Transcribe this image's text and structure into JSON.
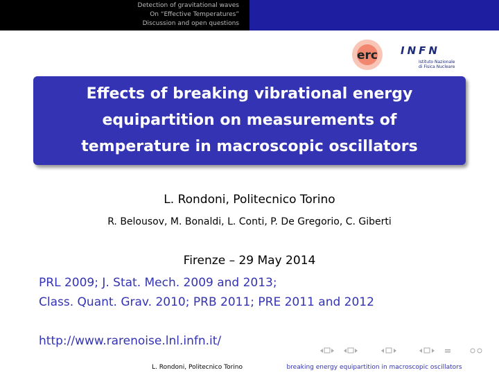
{
  "header": {
    "nav": [
      "Detection of gravitational waves",
      "On “Effective Temperatures”",
      "Discussion and open questions"
    ]
  },
  "logos": {
    "erc": "erc",
    "infn": "INFN",
    "infn_sub": [
      "Istituto Nazionale",
      "di Fisica Nucleare"
    ]
  },
  "title": [
    "Effects of breaking vibrational energy",
    "equipartition on measurements of",
    "temperature in macroscopic oscillators"
  ],
  "author": "L. Rondoni, Politecnico Torino",
  "coauthors": "R. Belousov, M. Bonaldi, L. Conti, P. De Gregorio, C. Giberti",
  "date": "Firenze – 29 May 2014",
  "references": [
    "PRL 2009; J. Stat. Mech. 2009 and 2013;",
    "Class. Quant. Grav. 2010; PRB 2011; PRE 2011 and 2012"
  ],
  "url": "http://www.rarenoise.lnl.infn.it/",
  "footer": {
    "left": "L. Rondoni, Politecnico Torino",
    "right": "breaking energy equipartition in macroscopic oscillators"
  }
}
